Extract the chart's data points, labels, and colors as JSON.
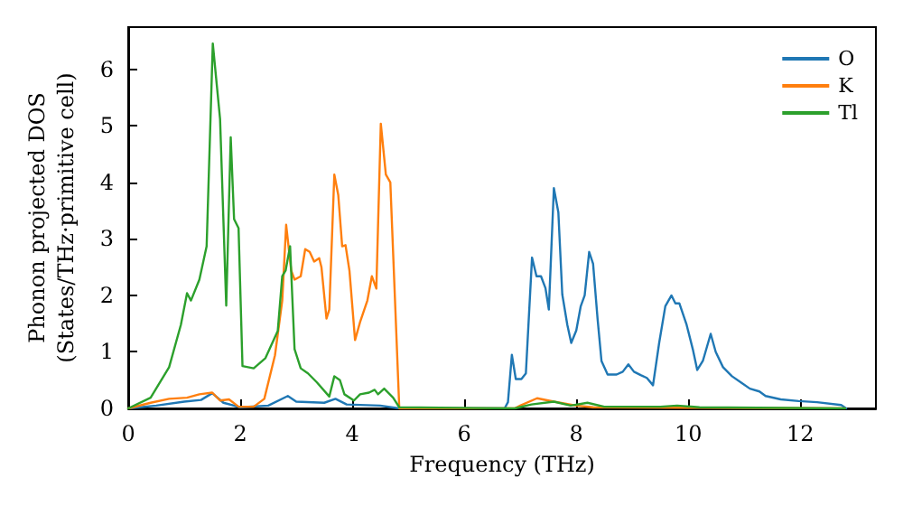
{
  "chart_data": {
    "type": "line",
    "xlabel": "Frequency (THz)",
    "ylabel": "Phonon projected DOS\n(States/THz·primitive cell)",
    "xlim": [
      0,
      13.35
    ],
    "xticks": [
      0,
      2,
      4,
      6,
      8,
      10,
      12
    ],
    "ylim": [
      0,
      6.75
    ],
    "yticks": [
      0,
      1,
      2,
      3,
      4,
      5,
      6
    ],
    "grid": false,
    "legend": "top right",
    "marker": "none",
    "line_style": "solid",
    "series": [
      {
        "name": "O",
        "color": "#1f77b4",
        "x": [
          0,
          0.5,
          1.0,
          1.3,
          1.5,
          1.7,
          2.0,
          2.5,
          2.85,
          3.0,
          3.5,
          3.7,
          3.9,
          4.5,
          4.84,
          6.72,
          6.78,
          6.85,
          6.92,
          7.02,
          7.1,
          7.21,
          7.29,
          7.37,
          7.45,
          7.51,
          7.6,
          7.68,
          7.75,
          7.84,
          7.91,
          8.0,
          8.08,
          8.15,
          8.23,
          8.3,
          8.38,
          8.45,
          8.56,
          8.72,
          8.83,
          8.93,
          9.03,
          9.15,
          9.26,
          9.37,
          9.48,
          9.59,
          9.7,
          9.77,
          9.84,
          9.97,
          10.08,
          10.16,
          10.26,
          10.4,
          10.49,
          10.62,
          10.78,
          10.94,
          11.1,
          11.27,
          11.38,
          11.65,
          11.97,
          12.3,
          12.73,
          12.82
        ],
        "values": [
          0,
          0.05,
          0.12,
          0.15,
          0.27,
          0.1,
          0.02,
          0.05,
          0.22,
          0.12,
          0.1,
          0.17,
          0.07,
          0.05,
          0,
          0,
          0.11,
          0.95,
          0.52,
          0.52,
          0.62,
          2.67,
          2.34,
          2.34,
          2.13,
          1.75,
          3.9,
          3.47,
          2.02,
          1.48,
          1.16,
          1.38,
          1.81,
          2.0,
          2.77,
          2.56,
          1.59,
          0.84,
          0.6,
          0.6,
          0.65,
          0.78,
          0.65,
          0.59,
          0.54,
          0.41,
          1.16,
          1.81,
          2.0,
          1.86,
          1.86,
          1.48,
          1.05,
          0.68,
          0.84,
          1.32,
          1.0,
          0.73,
          0.57,
          0.46,
          0.35,
          0.3,
          0.22,
          0.16,
          0.13,
          0.11,
          0.06,
          0
        ]
      },
      {
        "name": "K",
        "color": "#ff7f0e",
        "x": [
          0,
          0.4,
          0.73,
          1.05,
          1.27,
          1.5,
          1.64,
          1.8,
          1.97,
          2.24,
          2.43,
          2.62,
          2.75,
          2.82,
          2.91,
          2.97,
          3.08,
          3.16,
          3.24,
          3.32,
          3.41,
          3.45,
          3.54,
          3.59,
          3.68,
          3.75,
          3.82,
          3.88,
          3.95,
          4.05,
          4.14,
          4.27,
          4.35,
          4.43,
          4.51,
          4.6,
          4.68,
          4.84,
          6.9,
          7.0,
          7.3,
          7.6,
          8.0,
          8.3,
          12.8
        ],
        "values": [
          0,
          0.1,
          0.17,
          0.19,
          0.25,
          0.28,
          0.14,
          0.16,
          0.03,
          0.03,
          0.17,
          0.94,
          1.91,
          3.25,
          2.44,
          2.28,
          2.34,
          2.82,
          2.77,
          2.6,
          2.66,
          2.5,
          1.59,
          1.75,
          4.14,
          3.78,
          2.87,
          2.89,
          2.44,
          1.21,
          1.53,
          1.91,
          2.34,
          2.12,
          5.04,
          4.14,
          4.0,
          0,
          0,
          0.05,
          0.18,
          0.12,
          0.05,
          0.02,
          0
        ]
      },
      {
        "name": "Tl",
        "color": "#2ca02c",
        "x": [
          0,
          0.4,
          0.73,
          0.94,
          1.05,
          1.12,
          1.27,
          1.4,
          1.51,
          1.64,
          1.75,
          1.83,
          1.89,
          1.97,
          2.04,
          2.24,
          2.45,
          2.67,
          2.75,
          2.81,
          2.89,
          2.97,
          3.08,
          3.21,
          3.37,
          3.59,
          3.68,
          3.78,
          3.86,
          4.03,
          4.14,
          4.3,
          4.4,
          4.46,
          4.57,
          4.73,
          4.84,
          6.9,
          7.2,
          7.6,
          7.9,
          8.2,
          8.5,
          9.5,
          9.8,
          10.2,
          12.8
        ],
        "values": [
          0,
          0.19,
          0.73,
          1.48,
          2.04,
          1.91,
          2.28,
          2.87,
          6.46,
          5.12,
          1.82,
          4.8,
          3.35,
          3.19,
          0.75,
          0.71,
          0.89,
          1.37,
          2.34,
          2.44,
          2.87,
          1.05,
          0.71,
          0.62,
          0.46,
          0.21,
          0.57,
          0.5,
          0.25,
          0.14,
          0.25,
          0.28,
          0.33,
          0.25,
          0.35,
          0.19,
          0.02,
          0,
          0.07,
          0.12,
          0.05,
          0.1,
          0.03,
          0.03,
          0.05,
          0.02,
          0
        ]
      }
    ]
  }
}
